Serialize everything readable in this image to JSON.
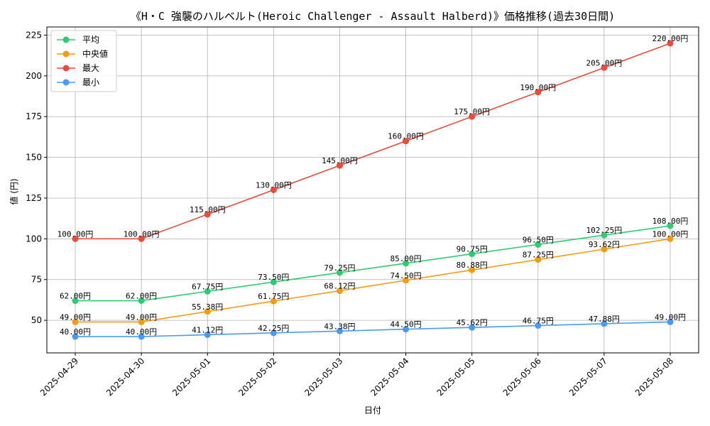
{
  "chart_data": {
    "type": "line",
    "title": "《H・C 強襲のハルベルト(Heroic Challenger - Assault Halberd)》価格推移(過去30日間)",
    "xlabel": "日付",
    "ylabel": "値 (円)",
    "categories": [
      "2025-04-29",
      "2025-04-30",
      "2025-05-01",
      "2025-05-02",
      "2025-05-03",
      "2025-05-04",
      "2025-05-05",
      "2025-05-06",
      "2025-05-07",
      "2025-05-08"
    ],
    "ylim": [
      30,
      230
    ],
    "yticks": [
      50,
      75,
      100,
      125,
      150,
      175,
      200,
      225
    ],
    "grid": true,
    "legend_position": "top-left",
    "value_suffix": "円",
    "series": [
      {
        "name": "平均",
        "color": "#2ecc71",
        "values": [
          62.0,
          62.0,
          67.75,
          73.5,
          79.25,
          85.0,
          90.75,
          96.5,
          102.25,
          108.0
        ]
      },
      {
        "name": "中央値",
        "color": "#f39c12",
        "values": [
          49.0,
          49.0,
          55.38,
          61.75,
          68.12,
          74.5,
          80.88,
          87.25,
          93.62,
          100.0
        ]
      },
      {
        "name": "最大",
        "color": "#e74c3c",
        "values": [
          100.0,
          100.0,
          115.0,
          130.0,
          145.0,
          160.0,
          175.0,
          190.0,
          205.0,
          220.0
        ]
      },
      {
        "name": "最小",
        "color": "#4a9af5",
        "values": [
          40.0,
          40.0,
          41.12,
          42.25,
          43.38,
          44.5,
          45.62,
          46.75,
          47.88,
          49.0
        ]
      }
    ]
  }
}
